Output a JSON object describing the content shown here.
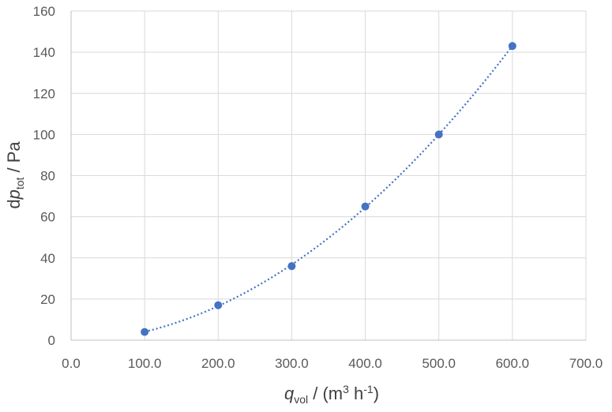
{
  "chart_data": {
    "type": "scatter",
    "series": [
      {
        "x": [
          100,
          200,
          300,
          400,
          500,
          600
        ],
        "y": [
          4,
          17,
          36,
          65,
          100,
          143
        ]
      }
    ],
    "trendline": "polynomial",
    "xlim": [
      0,
      700
    ],
    "ylim": [
      0,
      160
    ],
    "x_ticks": [
      "0.0",
      "100.0",
      "200.0",
      "300.0",
      "400.0",
      "500.0",
      "600.0",
      "700.0"
    ],
    "y_ticks": [
      "0",
      "20",
      "40",
      "60",
      "80",
      "100",
      "120",
      "140",
      "160"
    ],
    "xlabel": {
      "symbol": "q",
      "subscript": "vol",
      "unit_prefix": " / (m",
      "sup1": "3",
      "unit_mid": " h",
      "sup2": "-1",
      "unit_suffix": ")"
    },
    "ylabel": {
      "prefix": "d",
      "symbol": "p",
      "subscript": "tot",
      "unit": " / Pa"
    },
    "grid": true,
    "legend": "none",
    "color": "#4472c4"
  }
}
